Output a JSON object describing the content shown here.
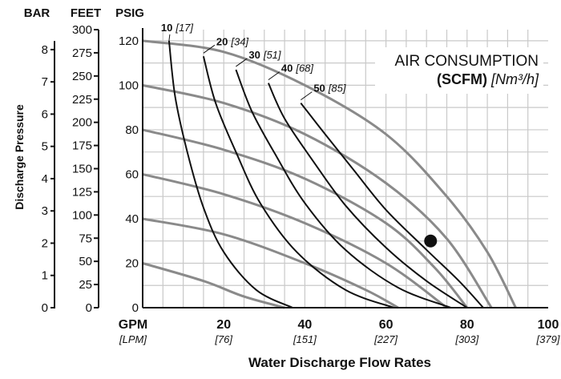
{
  "chart_data": {
    "type": "line",
    "title": "AIR CONSUMPTION",
    "subtitle_bold": "(SCFM)",
    "subtitle_italic": "[Nm³/h]",
    "xlabel": "Water Discharge Flow Rates",
    "ylabel": "Discharge Pressure",
    "axis_headers": {
      "bar": "BAR",
      "feet": "FEET",
      "psig": "PSIG"
    },
    "x_unit": "GPM",
    "x_unit_alt": "[LPM]",
    "xlim": [
      0,
      100
    ],
    "ylim": [
      0,
      125
    ],
    "x_ticks": [
      {
        "value": 0,
        "label": "0",
        "sub": ""
      },
      {
        "value": 20,
        "label": "20",
        "sub": "[76]"
      },
      {
        "value": 40,
        "label": "40",
        "sub": "[151]"
      },
      {
        "value": 60,
        "label": "60",
        "sub": "[227]"
      },
      {
        "value": 80,
        "label": "80",
        "sub": "[303]"
      },
      {
        "value": 100,
        "label": "100",
        "sub": "[379]"
      }
    ],
    "psig_ticks": [
      "0",
      "20",
      "40",
      "60",
      "80",
      "100",
      "120"
    ],
    "feet_ticks": [
      "0",
      "25",
      "50",
      "75",
      "100",
      "125",
      "150",
      "175",
      "200",
      "225",
      "250",
      "275",
      "300"
    ],
    "bar_ticks": [
      "0",
      "1",
      "2",
      "3",
      "4",
      "5",
      "6",
      "7",
      "8"
    ],
    "grid": true,
    "pressure_curves": [
      {
        "psig": 120,
        "points": [
          [
            0,
            120
          ],
          [
            20,
            115
          ],
          [
            40,
            100
          ],
          [
            60,
            78
          ],
          [
            75,
            50
          ],
          [
            85,
            25
          ],
          [
            92,
            0
          ]
        ]
      },
      {
        "psig": 100,
        "points": [
          [
            0,
            100
          ],
          [
            20,
            92
          ],
          [
            40,
            78
          ],
          [
            60,
            56
          ],
          [
            75,
            31
          ],
          [
            86,
            0
          ]
        ]
      },
      {
        "psig": 80,
        "points": [
          [
            0,
            80
          ],
          [
            20,
            71
          ],
          [
            40,
            58
          ],
          [
            60,
            38
          ],
          [
            72,
            18
          ],
          [
            80,
            0
          ]
        ]
      },
      {
        "psig": 60,
        "points": [
          [
            0,
            60
          ],
          [
            20,
            51
          ],
          [
            40,
            38
          ],
          [
            60,
            20
          ],
          [
            75,
            0
          ]
        ]
      },
      {
        "psig": 40,
        "points": [
          [
            0,
            40
          ],
          [
            20,
            33
          ],
          [
            40,
            20
          ],
          [
            55,
            8
          ],
          [
            63,
            0
          ]
        ]
      },
      {
        "psig": 20,
        "points": [
          [
            0,
            20
          ],
          [
            15,
            12
          ],
          [
            25,
            5
          ],
          [
            35,
            0
          ]
        ]
      }
    ],
    "air_curves": [
      {
        "label": "10",
        "label_alt": "[17]",
        "points": [
          [
            6.5,
            120
          ],
          [
            8,
            95
          ],
          [
            11,
            70
          ],
          [
            15,
            45
          ],
          [
            20,
            25
          ],
          [
            28,
            8
          ],
          [
            37,
            0
          ]
        ]
      },
      {
        "label": "20",
        "label_alt": "[34]",
        "points": [
          [
            15,
            113
          ],
          [
            18,
            92
          ],
          [
            23,
            70
          ],
          [
            29,
            47
          ],
          [
            38,
            25
          ],
          [
            50,
            8
          ],
          [
            62,
            0
          ]
        ]
      },
      {
        "label": "30",
        "label_alt": "[51]",
        "points": [
          [
            23,
            107
          ],
          [
            27,
            88
          ],
          [
            33,
            68
          ],
          [
            40,
            47
          ],
          [
            50,
            26
          ],
          [
            63,
            9
          ],
          [
            76,
            0
          ]
        ]
      },
      {
        "label": "40",
        "label_alt": "[68]",
        "points": [
          [
            31,
            101
          ],
          [
            35,
            85
          ],
          [
            42,
            66
          ],
          [
            50,
            46
          ],
          [
            60,
            27
          ],
          [
            70,
            12
          ],
          [
            80,
            0
          ]
        ]
      },
      {
        "label": "50",
        "label_alt": "[85]",
        "points": [
          [
            39,
            92
          ],
          [
            45,
            78
          ],
          [
            52,
            62
          ],
          [
            60,
            44
          ],
          [
            70,
            26
          ],
          [
            78,
            12
          ],
          [
            84,
            0
          ]
        ]
      }
    ],
    "operating_point": [
      71,
      30
    ]
  }
}
